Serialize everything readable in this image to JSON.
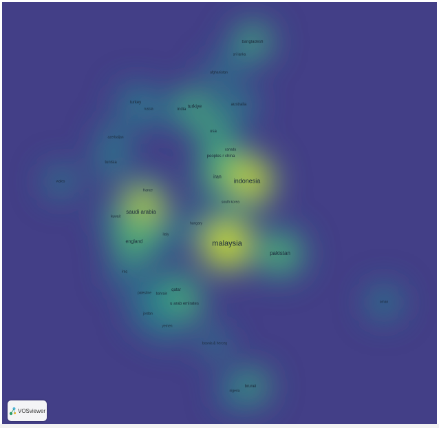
{
  "map": {
    "nodes": [
      {
        "id": "bangladesh",
        "label": "bangladesh",
        "size": 1,
        "weight": 0.55
      },
      {
        "id": "sri-lanka",
        "label": "sri lanka",
        "size": 0,
        "weight": 0.25
      },
      {
        "id": "afghanistan",
        "label": "afghanistan",
        "size": 0,
        "weight": 0.25
      },
      {
        "id": "australia",
        "label": "australia",
        "size": 1,
        "weight": 0.45
      },
      {
        "id": "turkey",
        "label": "turkey",
        "size": 1,
        "weight": 0.45
      },
      {
        "id": "russia",
        "label": "russia",
        "size": 0,
        "weight": 0.3
      },
      {
        "id": "india",
        "label": "india",
        "size": 1,
        "weight": 0.4
      },
      {
        "id": "turkiye",
        "label": "turkiye",
        "size": 2,
        "weight": 0.5
      },
      {
        "id": "usa",
        "label": "usa",
        "size": 1,
        "weight": 0.5
      },
      {
        "id": "canada",
        "label": "canada",
        "size": 0,
        "weight": 0.25
      },
      {
        "id": "peoples-r-china",
        "label": "peoples r china",
        "size": 1,
        "weight": 0.55
      },
      {
        "id": "azerbaijan",
        "label": "azerbaijan",
        "size": 0,
        "weight": 0.35
      },
      {
        "id": "tunisia",
        "label": "tunisia",
        "size": 1,
        "weight": 0.4
      },
      {
        "id": "wales",
        "label": "wales",
        "size": 0,
        "weight": 0.35
      },
      {
        "id": "iran",
        "label": "iran",
        "size": 2,
        "weight": 0.6
      },
      {
        "id": "indonesia",
        "label": "indonesia",
        "size": 4,
        "weight": 0.95
      },
      {
        "id": "france",
        "label": "france",
        "size": 0,
        "weight": 0.4
      },
      {
        "id": "saudi-arabia",
        "label": "saudi arabia",
        "size": 3,
        "weight": 0.9
      },
      {
        "id": "kuwait",
        "label": "kuwait",
        "size": 0,
        "weight": 0.35
      },
      {
        "id": "south-korea",
        "label": "south korea",
        "size": 0,
        "weight": 0.35
      },
      {
        "id": "hungary",
        "label": "hungary",
        "size": 0,
        "weight": 0.3
      },
      {
        "id": "italy",
        "label": "italy",
        "size": 0,
        "weight": 0.4
      },
      {
        "id": "england",
        "label": "england",
        "size": 2,
        "weight": 0.75
      },
      {
        "id": "malaysia",
        "label": "malaysia",
        "size": 5,
        "weight": 1.0
      },
      {
        "id": "pakistan",
        "label": "pakistan",
        "size": 3,
        "weight": 0.75
      },
      {
        "id": "iraq",
        "label": "iraq",
        "size": 0,
        "weight": 0.3
      },
      {
        "id": "palestine",
        "label": "palestine",
        "size": 0,
        "weight": 0.35
      },
      {
        "id": "bahrain",
        "label": "bahrain",
        "size": 0,
        "weight": 0.35
      },
      {
        "id": "qatar",
        "label": "qatar",
        "size": 1,
        "weight": 0.5
      },
      {
        "id": "u-arab-emirates",
        "label": "u arab emirates",
        "size": 1,
        "weight": 0.55
      },
      {
        "id": "jordan",
        "label": "jordan",
        "size": 0,
        "weight": 0.4
      },
      {
        "id": "yemen",
        "label": "yemen",
        "size": 0,
        "weight": 0.35
      },
      {
        "id": "oman",
        "label": "oman",
        "size": 0,
        "weight": 0.4
      },
      {
        "id": "brunei",
        "label": "brunei",
        "size": 1,
        "weight": 0.5
      },
      {
        "id": "nigeria",
        "label": "nigeria",
        "size": 0,
        "weight": 0.35
      },
      {
        "id": "bosnia-herceg",
        "label": "bosnia & herceg",
        "size": 0,
        "weight": 0.3
      }
    ]
  },
  "logo": {
    "text": "VOSviewer"
  }
}
